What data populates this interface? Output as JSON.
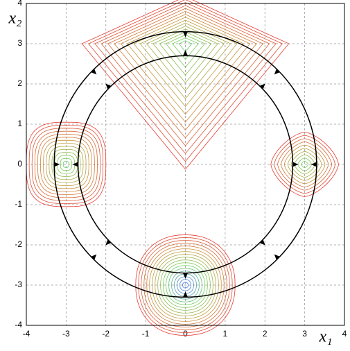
{
  "chart_data": {
    "type": "contour",
    "xlabel": "x₁",
    "ylabel": "x₂",
    "xlim": [
      -4,
      4
    ],
    "ylim": [
      -4,
      4
    ],
    "xticks": [
      -4,
      -3,
      -2,
      -1,
      0,
      1,
      2,
      3,
      4
    ],
    "yticks": [
      -4,
      -3,
      -2,
      -1,
      0,
      1,
      2,
      3,
      4
    ],
    "grid": true,
    "wells": {
      "x": [
        0,
        -3,
        3,
        0
      ],
      "y": [
        3,
        0,
        0,
        -3
      ]
    },
    "circles": {
      "radius": [
        2.7,
        3.3
      ],
      "color": "#000000"
    }
  }
}
